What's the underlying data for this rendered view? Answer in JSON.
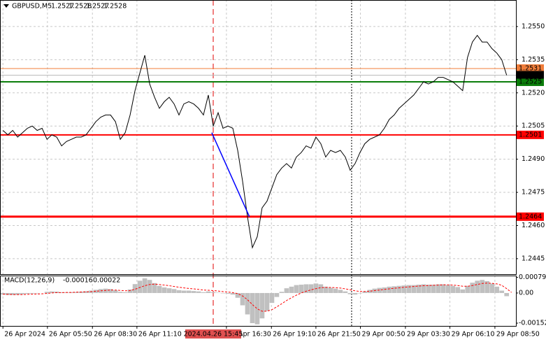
{
  "chart_data": {
    "type": "line",
    "symbol": "GBPUSD,M5",
    "ohlc": [
      1.2527,
      1.2528,
      1.2527,
      1.2528
    ],
    "color": "#000000",
    "values": [
      1.2503,
      1.2501,
      1.2503,
      1.25,
      1.2502,
      1.2504,
      1.2505,
      1.2503,
      1.2504,
      1.2499,
      1.2501,
      1.25,
      1.2496,
      1.2498,
      1.2499,
      1.25,
      1.25,
      1.2501,
      1.2504,
      1.2507,
      1.2509,
      1.251,
      1.251,
      1.2507,
      1.2499,
      1.2502,
      1.251,
      1.2521,
      1.2529,
      1.2537,
      1.2524,
      1.2518,
      1.2513,
      1.2516,
      1.2518,
      1.2515,
      1.251,
      1.2515,
      1.2516,
      1.2515,
      1.2513,
      1.251,
      1.2519,
      1.2505,
      1.2511,
      1.2504,
      1.2505,
      1.2504,
      1.2494,
      1.248,
      1.2464,
      1.245,
      1.2455,
      1.2468,
      1.2471,
      1.2477,
      1.2483,
      1.2486,
      1.2488,
      1.2486,
      1.2491,
      1.2493,
      1.2496,
      1.2495,
      1.25,
      1.2497,
      1.2491,
      1.2494,
      1.2493,
      1.2494,
      1.2491,
      1.2485,
      1.2488,
      1.2493,
      1.2497,
      1.2499,
      1.25,
      1.2501,
      1.2504,
      1.2508,
      1.251,
      1.2513,
      1.2515,
      1.2517,
      1.2519,
      1.2522,
      1.2525,
      1.2524,
      1.2525,
      1.2527,
      1.2527,
      1.2526,
      1.2525,
      1.2523,
      1.2521,
      1.2536,
      1.2543,
      1.2546,
      1.2543,
      1.2543,
      1.254,
      1.2538,
      1.2535,
      1.2528
    ],
    "xlim": [
      -0.6,
      104.9
    ],
    "ylim": [
      1.2438,
      1.2562
    ],
    "xticks": [
      {
        "value": 0,
        "label": "26 Apr 2024"
      },
      {
        "value": 9.1,
        "label": "26 Apr 05:50"
      },
      {
        "value": 18.3,
        "label": "26 Apr 08:30"
      },
      {
        "value": 27.4,
        "label": "26 Apr 11:10"
      },
      {
        "value": 45.7,
        "label": "26 Apr 16:30"
      },
      {
        "value": 54.9,
        "label": "26 Apr 19:10"
      },
      {
        "value": 64,
        "label": "26 Apr 21:50"
      },
      {
        "value": 73.1,
        "label": "29 Apr 00:50"
      },
      {
        "value": 82.3,
        "label": "29 Apr 03:30"
      },
      {
        "value": 91.4,
        "label": "29 Apr 06:10"
      },
      {
        "value": 100.6,
        "label": "29 Apr 08:50"
      }
    ],
    "yticks": [
      {
        "value": 1.255,
        "label": "1.2550"
      },
      1.2535,
      {
        "value": 1.252,
        "label": "1.2520"
      },
      1.2505,
      {
        "value": 1.249,
        "label": "1.2490"
      },
      1.2475,
      {
        "value": 1.246,
        "label": "1.2460"
      },
      1.2445
    ],
    "grid": true,
    "levels": [
      {
        "value": 1.2531,
        "color": "#f07d3a"
      },
      {
        "value": 1.2525,
        "color": "#0a7d0a"
      },
      {
        "value": 1.2501,
        "color": "#ff0000"
      },
      {
        "value": 1.2464,
        "color": "#ff0000"
      }
    ],
    "trendline": {
      "x": [
        42.7,
        50.4
      ],
      "values": [
        1.2502,
        1.2464
      ],
      "color": "#0000ff"
    },
    "vlines": [
      {
        "x": 43,
        "color": "#e00000",
        "label": "2024.04.26 15:45"
      },
      {
        "x": 71.3,
        "color": "#000000"
      }
    ],
    "macd": {
      "title": "MACD(12,26,9)",
      "ylim": [
        -0.00166,
        0.00088
      ],
      "yticks": [
        0.00079,
        {
          "value": 0,
          "label": "0.00"
        },
        -0.00152
      ],
      "histogram": {
        "color": "#c0c0c0",
        "values": [
          -8e-05,
          -0.0001,
          -0.0001,
          -9e-05,
          -6e-05,
          -4e-05,
          -3e-05,
          -2e-05,
          0,
          6e-05,
          8e-05,
          7e-05,
          4e-05,
          3e-05,
          4e-05,
          5e-05,
          7e-05,
          9e-05,
          0.00012,
          0.00016,
          0.0002,
          0.00022,
          0.0002,
          0.00014,
          6e-05,
          4e-05,
          0.00018,
          0.00045,
          0.00062,
          0.00074,
          0.00066,
          0.0005,
          0.00036,
          0.00028,
          0.00024,
          0.0002,
          0.00014,
          0.00012,
          0.00012,
          0.0001,
          8e-05,
          4e-05,
          8e-05,
          4e-05,
          2e-05,
          -2e-05,
          -4e-05,
          -8e-05,
          -0.00024,
          -0.00062,
          -0.00108,
          -0.00152,
          -0.00158,
          -0.00128,
          -0.0009,
          -0.0005,
          -0.0002,
          6e-05,
          0.00024,
          0.00032,
          0.0004,
          0.00042,
          0.00044,
          0.00044,
          0.00048,
          0.00044,
          0.00032,
          0.00026,
          0.00022,
          0.00016,
          8e-05,
          -6e-05,
          -8e-05,
          -2e-05,
          8e-05,
          0.00016,
          0.00022,
          0.00026,
          0.00028,
          0.00032,
          0.00034,
          0.00036,
          0.00038,
          0.0004,
          0.0004,
          0.00042,
          0.00044,
          0.00042,
          0.00042,
          0.00044,
          0.00044,
          0.0004,
          0.00036,
          0.0003,
          0.00018,
          0.00036,
          0.00052,
          0.00062,
          0.00066,
          0.0006,
          0.00048,
          0.00032,
          0.00012,
          -0.00016
        ]
      },
      "signal": {
        "color": "#ff0000",
        "values": [
          -6e-05,
          -7e-05,
          -8e-05,
          -8e-05,
          -8e-05,
          -7e-05,
          -6e-05,
          -5e-05,
          -4e-05,
          -2e-05,
          0,
          2e-05,
          2e-05,
          3e-05,
          3e-05,
          4e-05,
          5e-05,
          6e-05,
          7e-05,
          9e-05,
          0.00011,
          0.00013,
          0.00015,
          0.00015,
          0.00013,
          0.00011,
          0.00012,
          0.00019,
          0.00028,
          0.00037,
          0.00043,
          0.00045,
          0.00043,
          0.0004,
          0.00037,
          0.00033,
          0.00029,
          0.00026,
          0.00023,
          0.00021,
          0.00018,
          0.00015,
          0.00014,
          0.00012,
          0.0001,
          7e-05,
          5e-05,
          2e-05,
          -3e-05,
          -0.00015,
          -0.00034,
          -0.00058,
          -0.0008,
          -0.00092,
          -0.00092,
          -0.00084,
          -0.0007,
          -0.00054,
          -0.00038,
          -0.00024,
          -0.00011,
          0,
          9e-05,
          0.00016,
          0.00022,
          0.00027,
          0.00028,
          0.00028,
          0.00027,
          0.00025,
          0.00021,
          0.00016,
          0.00011,
          8e-05,
          8e-05,
          9e-05,
          0.00012,
          0.00015,
          0.00018,
          0.00021,
          0.00024,
          0.00026,
          0.00029,
          0.00031,
          0.00033,
          0.00035,
          0.00037,
          0.00038,
          0.00039,
          0.0004,
          0.00041,
          0.00041,
          0.0004,
          0.00038,
          0.00034,
          0.00034,
          0.00038,
          0.00043,
          0.00048,
          0.0005,
          0.00049,
          0.00046,
          0.00039,
          0.00022,
          3e-05
        ]
      }
    }
  }
}
